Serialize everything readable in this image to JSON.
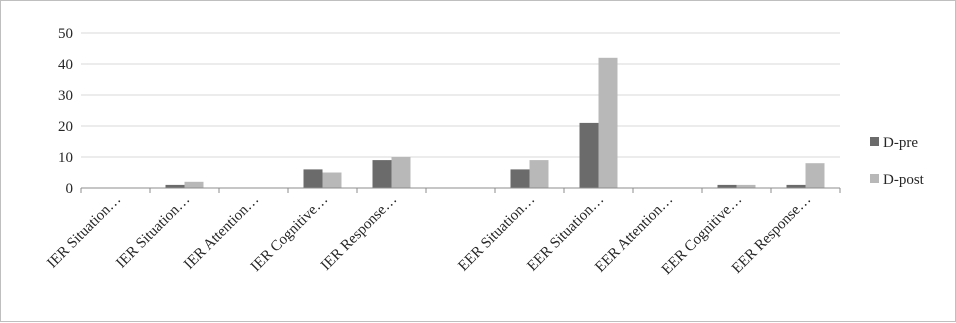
{
  "chart_data": {
    "type": "bar",
    "categories": [
      "IER Situation…",
      "IER Situation…",
      "IER Attention…",
      "IER Cognitive…",
      "IER Response…",
      "",
      "EER Situation…",
      "EER Situation…",
      "EER Attention…",
      "EER Cognitive…",
      "EER Response…"
    ],
    "series": [
      {
        "name": "D-pre",
        "color": "#6b6b6b",
        "values": [
          0,
          1,
          0,
          6,
          9,
          0,
          6,
          21,
          0,
          1,
          1
        ]
      },
      {
        "name": "D-post",
        "color": "#b8b8b8",
        "values": [
          0,
          2,
          0,
          5,
          10,
          0,
          9,
          42,
          0,
          1,
          8
        ]
      }
    ],
    "yticks": [
      "0",
      "10",
      "20",
      "30",
      "40",
      "50"
    ],
    "ylim": [
      0,
      50
    ],
    "grid": true,
    "legend": "right",
    "title": "",
    "xlabel": "",
    "ylabel": ""
  }
}
